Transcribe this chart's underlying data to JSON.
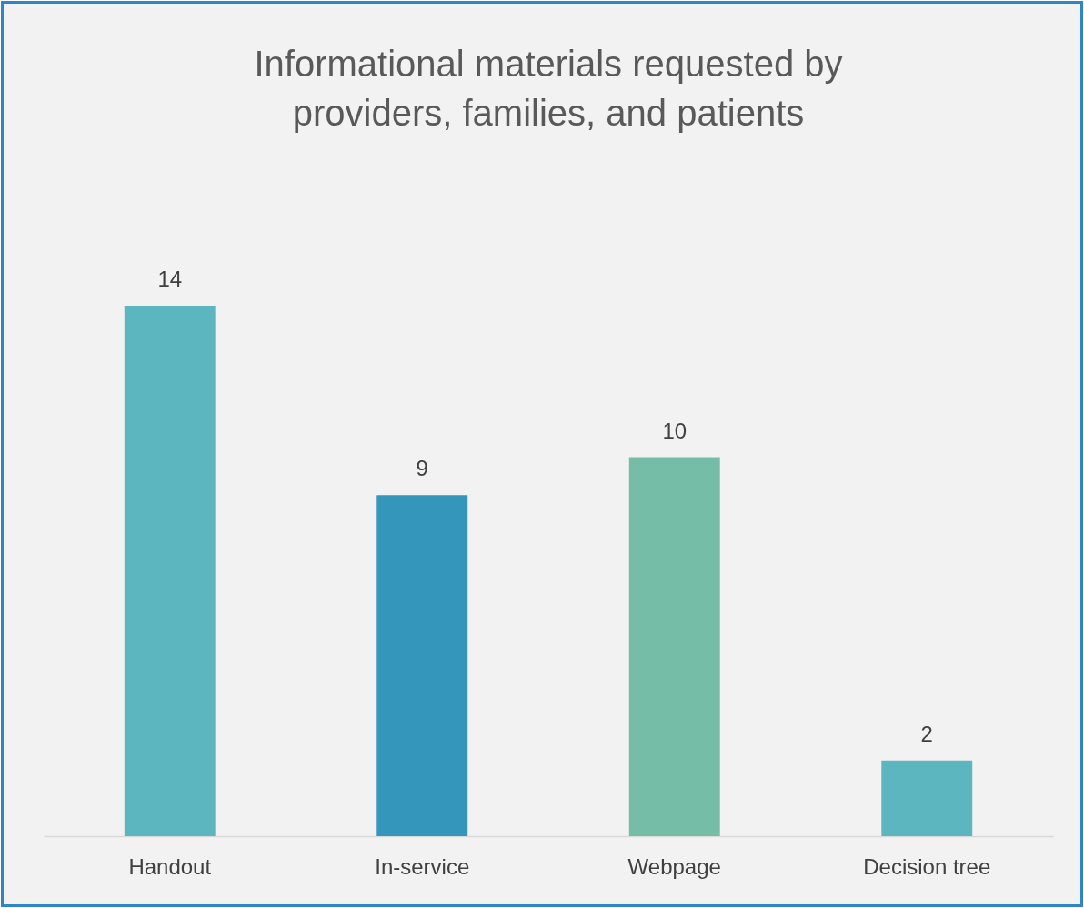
{
  "chart_data": {
    "type": "bar",
    "title": "Informational materials requested by providers, families, and patients",
    "categories": [
      "Handout",
      "In-service",
      "Webpage",
      "Decision tree"
    ],
    "values": [
      14,
      9,
      10,
      2
    ],
    "colors": [
      "#5bb6c0",
      "#3596bb",
      "#75bda6",
      "#5bb6c0"
    ],
    "data_labels": true,
    "tick_labels": "x",
    "grid": false
  }
}
